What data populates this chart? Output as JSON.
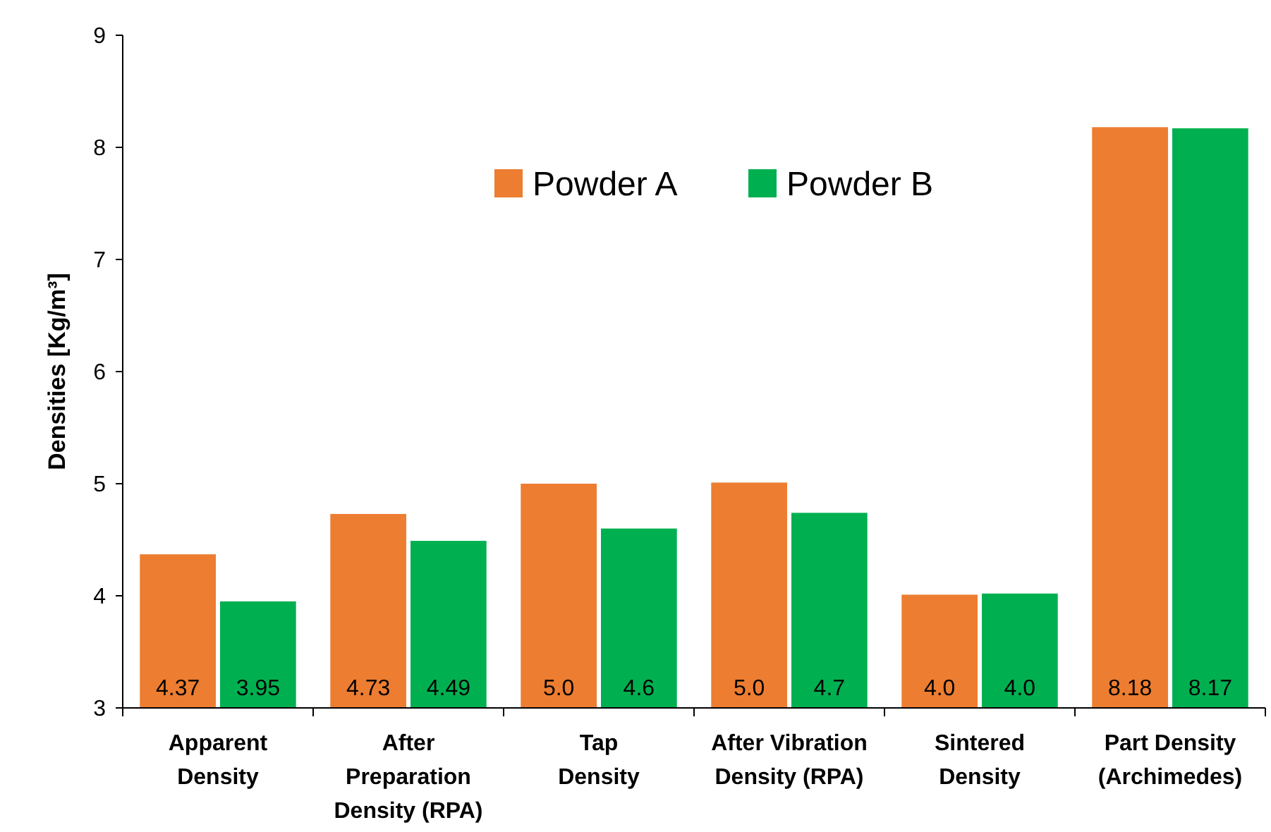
{
  "chart_data": {
    "type": "bar",
    "ylabel": "Densities [Kg/m³]",
    "categories": [
      "Apparent\nDensity",
      "After\nPreparation\nDensity (RPA)",
      "Tap\nDensity",
      "After Vibration\nDensity (RPA)",
      "Sintered\nDensity",
      "Part Density\n(Archimedes)"
    ],
    "series": [
      {
        "name": "Powder A",
        "color": "#ed7d31",
        "values": [
          4.37,
          4.73,
          5.0,
          5.01,
          4.01,
          8.18
        ],
        "value_labels": [
          "4.37",
          "4.73",
          "5.0",
          "5.0",
          "4.0",
          "8.18"
        ]
      },
      {
        "name": "Powder B",
        "color": "#00b050",
        "values": [
          3.95,
          4.49,
          4.6,
          4.74,
          4.02,
          8.17
        ],
        "value_labels": [
          "3.95",
          "4.49",
          "4.6",
          "4.7",
          "4.0",
          "8.17"
        ]
      }
    ],
    "ylim": [
      3,
      9
    ],
    "yticks": [
      3,
      4,
      5,
      6,
      7,
      8,
      9
    ],
    "legend": "top",
    "grid": false
  }
}
